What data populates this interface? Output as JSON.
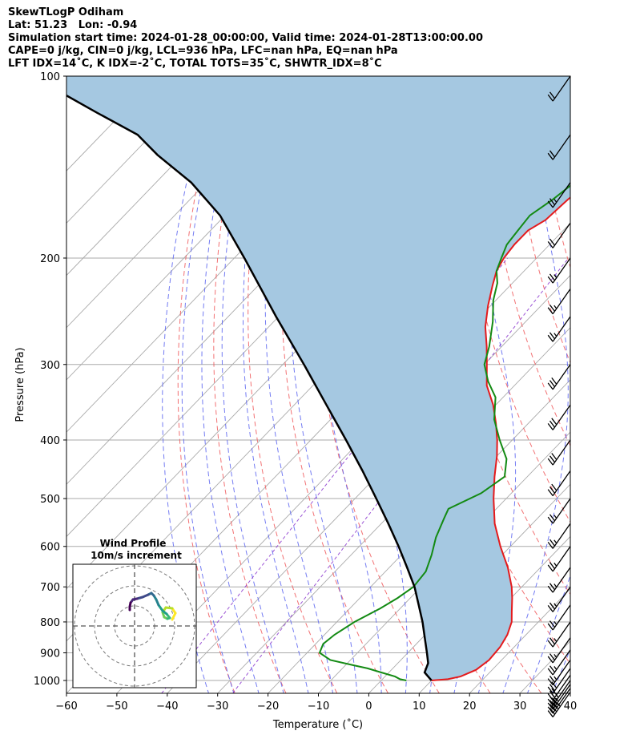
{
  "header": {
    "line1": "SkewTLogP Odiham",
    "line2": "Lat: 51.23   Lon: -0.94",
    "line3": "Simulation start time: 2024-01-28_00:00:00, Valid time: 2024-01-28T13:00:00.00",
    "line4": "CAPE=0 j/kg, CIN=0 j/kg, LCL=936 hPa, LFC=nan hPa, EQ=nan hPa",
    "line5": "LFT IDX=14˚C, K IDX=-2˚C, TOTAL TOTS=35˚C, SHWTR_IDX=8˚C"
  },
  "chart_data": [
    {
      "type": "line",
      "subtype": "skew-T log-P",
      "xlabel": "Temperature (˚C)",
      "ylabel": "Pressure (hPa)",
      "xlim": [
        -60,
        40
      ],
      "ylim": [
        1050,
        100
      ],
      "y_scale": "log",
      "x_ticks": [
        "−60",
        "−50",
        "−40",
        "−30",
        "−20",
        "−10",
        "0",
        "10",
        "20",
        "30",
        "40"
      ],
      "y_ticks": [
        "100",
        "200",
        "300",
        "400",
        "500",
        "600",
        "700",
        "800",
        "900",
        "1000"
      ],
      "grid": true,
      "colors": {
        "temperature": "#e41a1c",
        "dewpoint": "#138a13",
        "parcel": "#000000",
        "shading": "#a5c8e1",
        "dry_adiabat": "#f0585a",
        "moist_adiabat": "#5a64f0",
        "mixing_ratio": "#9040d0",
        "isotherm": "#aaaaaa"
      },
      "series": [
        {
          "key": "temperature",
          "points": [
            [
              10.0,
              1000
            ],
            [
              13.0,
              995
            ],
            [
              15.0,
              985
            ],
            [
              16.8,
              960
            ],
            [
              17.5,
              925
            ],
            [
              17.2,
              880
            ],
            [
              16.3,
              840
            ],
            [
              14.7,
              800
            ],
            [
              12.8,
              770
            ],
            [
              10.2,
              730
            ],
            [
              8.0,
              700
            ],
            [
              3.5,
              650
            ],
            [
              -2.0,
              600
            ],
            [
              -7.5,
              550
            ],
            [
              -12.5,
              500
            ],
            [
              -16.5,
              460
            ],
            [
              -20.0,
              425
            ],
            [
              -23.0,
              400
            ],
            [
              -26.5,
              375
            ],
            [
              -30.5,
              350
            ],
            [
              -35.5,
              325
            ],
            [
              -39.5,
              300
            ],
            [
              -43.0,
              280
            ],
            [
              -47.0,
              260
            ],
            [
              -50.5,
              240
            ],
            [
              -53.5,
              222
            ],
            [
              -55.5,
              210
            ],
            [
              -56.5,
              200
            ],
            [
              -57.0,
              190
            ],
            [
              -57.0,
              180
            ],
            [
              -55.5,
              173
            ],
            [
              -55.0,
              160
            ],
            [
              -54.0,
              150
            ],
            [
              -53.5,
              145
            ],
            [
              -52.0,
              133
            ],
            [
              -51.0,
              126
            ],
            [
              -51.5,
              115
            ],
            [
              -51.5,
              108
            ],
            [
              -51.0,
              100
            ]
          ]
        },
        {
          "key": "dewpoint",
          "points": [
            [
              5.0,
              1000
            ],
            [
              3.5,
              995
            ],
            [
              2.0,
              985
            ],
            [
              -1.5,
              970
            ],
            [
              -5.0,
              955
            ],
            [
              -8.0,
              945
            ],
            [
              -14.0,
              925
            ],
            [
              -17.5,
              900
            ],
            [
              -18.5,
              870
            ],
            [
              -18.0,
              840
            ],
            [
              -16.5,
              800
            ],
            [
              -14.0,
              760
            ],
            [
              -12.5,
              730
            ],
            [
              -11.5,
              700
            ],
            [
              -12.0,
              660
            ],
            [
              -14.0,
              620
            ],
            [
              -16.5,
              580
            ],
            [
              -18.5,
              540
            ],
            [
              -19.5,
              520
            ],
            [
              -16.0,
              490
            ],
            [
              -14.5,
              460
            ],
            [
              -17.5,
              430
            ],
            [
              -22.5,
              400
            ],
            [
              -27.5,
              370
            ],
            [
              -31.5,
              340
            ],
            [
              -36.0,
              320
            ],
            [
              -40.0,
              300
            ],
            [
              -42.5,
              280
            ],
            [
              -46.5,
              255
            ],
            [
              -50.5,
              235
            ],
            [
              -53.0,
              220
            ],
            [
              -55.5,
              210
            ],
            [
              -57.0,
              200
            ],
            [
              -58.5,
              190
            ],
            [
              -59.0,
              180
            ],
            [
              -59.5,
              170
            ],
            [
              -58.0,
              160
            ],
            [
              -57.0,
              150
            ],
            [
              -60.5,
              140
            ],
            [
              -64.5,
              130
            ],
            [
              -65.5,
              120
            ],
            [
              -64.5,
              110
            ],
            [
              -63.0,
              100
            ]
          ]
        },
        {
          "key": "parcel",
          "points": [
            [
              10.0,
              1000
            ],
            [
              7.1,
              970
            ],
            [
              6.0,
              936
            ],
            [
              3.8,
              900
            ],
            [
              0.5,
              850
            ],
            [
              -3.0,
              800
            ],
            [
              -7.0,
              750
            ],
            [
              -11.3,
              700
            ],
            [
              -16.5,
              650
            ],
            [
              -22.2,
              600
            ],
            [
              -28.6,
              550
            ],
            [
              -35.8,
              500
            ],
            [
              -43.8,
              450
            ],
            [
              -53.0,
              400
            ],
            [
              -63.6,
              350
            ],
            [
              -75.8,
              300
            ],
            [
              -90.5,
              250
            ],
            [
              -108.0,
              200
            ],
            [
              -121.0,
              170
            ],
            [
              -133.0,
              150
            ],
            [
              -145.0,
              135
            ],
            [
              -152.8,
              125
            ],
            [
              -165.0,
              115
            ],
            [
              -178.0,
              105
            ],
            [
              -184.4,
              100
            ]
          ]
        }
      ],
      "wind_barbs": {
        "pressures_hPa": [
          1045,
          1030,
          1015,
          1000,
          980,
          955,
          925,
          890,
          850,
          800,
          750,
          700,
          650,
          600,
          550,
          500,
          450,
          400,
          350,
          300,
          250,
          225,
          200,
          175,
          150,
          125,
          100
        ],
        "speeds_kt": [
          45,
          40,
          35,
          35,
          30,
          30,
          25,
          25,
          25,
          25,
          25,
          25,
          25,
          25,
          25,
          25,
          30,
          30,
          30,
          30,
          25,
          25,
          25,
          20,
          25,
          20,
          20
        ]
      },
      "inset": {
        "title": "Wind Profile",
        "subtitle": "10m/s increment"
      }
    }
  ]
}
